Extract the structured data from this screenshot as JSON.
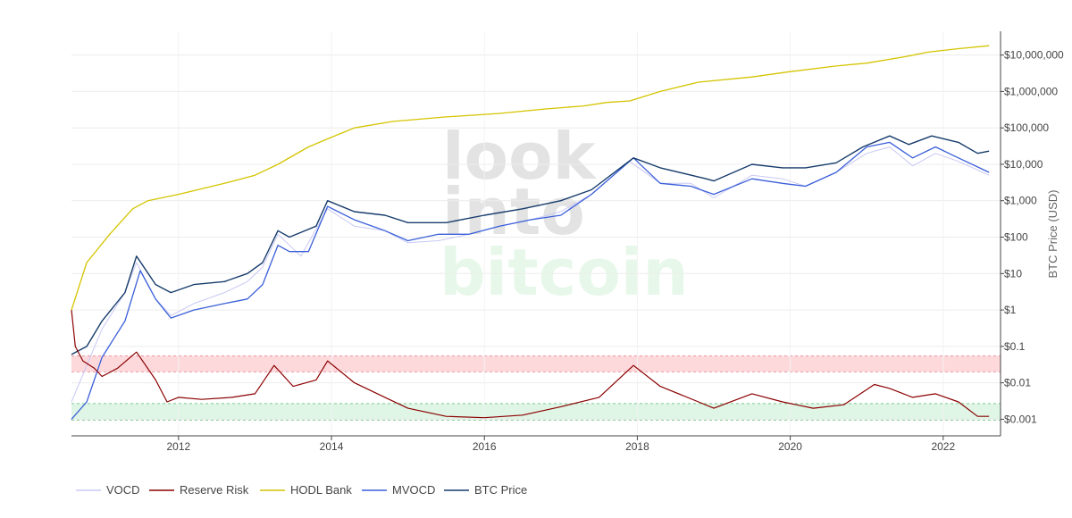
{
  "colors": {
    "vocd": "#c8c8f5",
    "reserve_risk": "#8b0000",
    "hodl_bank": "#d4c400",
    "mvocd": "#3a5fd9",
    "btc_price": "#173c6b",
    "red_band": "#fdd9dc",
    "green_band": "#dff5e6",
    "watermark_gray": "#e3e3e3",
    "watermark_green": "#e7f8ea"
  },
  "watermark": {
    "line1": "look",
    "line2": "into",
    "line3": "bitcoin"
  },
  "chart_data": {
    "type": "line",
    "title": "",
    "yscale": "log",
    "ylabel": "BTC Price (USD)",
    "xlabel": "",
    "xlim": [
      2010.6,
      2022.75
    ],
    "ylim": [
      0.00035,
      45000000
    ],
    "x_ticks": [
      2012,
      2014,
      2016,
      2018,
      2020,
      2022
    ],
    "x_tick_labels": [
      "2012",
      "2014",
      "2016",
      "2018",
      "2020",
      "2022"
    ],
    "y_ticks": [
      0.001,
      0.01,
      0.1,
      1,
      10,
      100,
      1000,
      10000,
      100000,
      1000000,
      10000000
    ],
    "y_tick_labels": [
      "$0.001",
      "$0.01",
      "$0.1",
      "$1",
      "$10",
      "$100",
      "$1,000",
      "$10,000",
      "$100,000",
      "$1,000,000",
      "$10,000,000"
    ],
    "bands": [
      {
        "name": "high-risk-band",
        "y0": 0.02,
        "y1": 0.055
      },
      {
        "name": "low-risk-band",
        "y0": 0.00095,
        "y1": 0.0027
      }
    ],
    "legend_position": "bottom-left",
    "series": [
      {
        "name": "VOCD",
        "key": "vocd",
        "x": [
          2010.6,
          2010.8,
          2011.0,
          2011.3,
          2011.45,
          2011.7,
          2011.9,
          2012.2,
          2012.6,
          2012.9,
          2013.1,
          2013.3,
          2013.6,
          2013.95,
          2014.3,
          2014.7,
          2015.0,
          2015.4,
          2015.8,
          2016.2,
          2016.6,
          2017.0,
          2017.4,
          2017.9,
          2018.3,
          2018.7,
          2019.0,
          2019.5,
          2019.9,
          2020.2,
          2020.6,
          2021.0,
          2021.3,
          2021.6,
          2021.9,
          2022.2,
          2022.6
        ],
        "y": [
          0.003,
          0.03,
          0.3,
          3,
          20,
          2,
          0.7,
          1.5,
          3,
          6,
          15,
          120,
          30,
          600,
          200,
          150,
          70,
          80,
          120,
          200,
          300,
          500,
          1500,
          12000,
          3000,
          3000,
          1200,
          5000,
          4000,
          2500,
          6000,
          20000,
          30000,
          9000,
          20000,
          12000,
          5000
        ]
      },
      {
        "name": "Reserve Risk",
        "key": "reserve_risk",
        "x": [
          2010.6,
          2010.65,
          2010.75,
          2010.9,
          2011.0,
          2011.2,
          2011.45,
          2011.7,
          2011.85,
          2012.0,
          2012.3,
          2012.7,
          2013.0,
          2013.25,
          2013.5,
          2013.8,
          2013.95,
          2014.3,
          2014.7,
          2015.0,
          2015.5,
          2016.0,
          2016.5,
          2017.0,
          2017.5,
          2017.95,
          2018.3,
          2018.8,
          2019.0,
          2019.5,
          2019.9,
          2020.3,
          2020.7,
          2021.1,
          2021.3,
          2021.6,
          2021.9,
          2022.2,
          2022.45,
          2022.6
        ],
        "y": [
          1.0,
          0.1,
          0.04,
          0.025,
          0.015,
          0.025,
          0.07,
          0.012,
          0.003,
          0.004,
          0.0035,
          0.004,
          0.005,
          0.03,
          0.008,
          0.012,
          0.04,
          0.01,
          0.004,
          0.002,
          0.0012,
          0.0011,
          0.0013,
          0.0022,
          0.004,
          0.03,
          0.008,
          0.003,
          0.002,
          0.005,
          0.003,
          0.002,
          0.0025,
          0.009,
          0.007,
          0.004,
          0.005,
          0.003,
          0.0012,
          0.0012
        ]
      },
      {
        "name": "HODL Bank",
        "key": "hodl_bank",
        "x": [
          2010.6,
          2010.8,
          2011.1,
          2011.4,
          2011.6,
          2012.0,
          2012.6,
          2013.0,
          2013.3,
          2013.7,
          2013.95,
          2014.3,
          2014.8,
          2015.5,
          2016.2,
          2016.8,
          2017.3,
          2017.6,
          2017.9,
          2018.3,
          2018.8,
          2019.5,
          2020.0,
          2020.6,
          2021.0,
          2021.5,
          2021.8,
          2022.2,
          2022.6
        ],
        "y": [
          1,
          20,
          120,
          600,
          1000,
          1500,
          3000,
          5000,
          10000,
          30000,
          50000,
          100000,
          150000,
          200000,
          250000,
          330000,
          400000,
          500000,
          550000,
          1000000,
          1800000,
          2500000,
          3500000,
          5000000,
          6000000,
          9000000,
          12000000,
          15000000,
          18000000
        ]
      },
      {
        "name": "MVOCD",
        "key": "mvocd",
        "x": [
          2010.6,
          2010.8,
          2011.0,
          2011.3,
          2011.5,
          2011.7,
          2011.9,
          2012.2,
          2012.6,
          2012.9,
          2013.1,
          2013.3,
          2013.45,
          2013.7,
          2013.95,
          2014.3,
          2014.7,
          2015.0,
          2015.4,
          2015.8,
          2016.2,
          2016.6,
          2017.0,
          2017.4,
          2017.95,
          2018.3,
          2018.7,
          2019.0,
          2019.5,
          2019.9,
          2020.2,
          2020.6,
          2021.0,
          2021.3,
          2021.6,
          2021.9,
          2022.2,
          2022.6
        ],
        "y": [
          0.001,
          0.003,
          0.05,
          0.5,
          12,
          2,
          0.6,
          1,
          1.5,
          2,
          5,
          60,
          40,
          40,
          700,
          300,
          150,
          80,
          120,
          120,
          200,
          300,
          400,
          1500,
          15000,
          3000,
          2500,
          1500,
          4000,
          3000,
          2500,
          6000,
          30000,
          40000,
          15000,
          30000,
          15000,
          6000
        ]
      },
      {
        "name": "BTC Price",
        "key": "btc_price",
        "x": [
          2010.6,
          2010.8,
          2011.0,
          2011.3,
          2011.45,
          2011.7,
          2011.9,
          2012.2,
          2012.6,
          2012.9,
          2013.1,
          2013.3,
          2013.45,
          2013.8,
          2013.95,
          2014.3,
          2014.7,
          2015.0,
          2015.5,
          2016.0,
          2016.5,
          2017.0,
          2017.4,
          2017.95,
          2018.3,
          2018.9,
          2019.0,
          2019.5,
          2019.9,
          2020.2,
          2020.6,
          2020.95,
          2021.3,
          2021.55,
          2021.85,
          2022.2,
          2022.45,
          2022.6
        ],
        "y": [
          0.06,
          0.1,
          0.5,
          3,
          30,
          5,
          3,
          5,
          6,
          10,
          20,
          150,
          100,
          200,
          1000,
          500,
          400,
          250,
          250,
          400,
          600,
          1000,
          2000,
          15000,
          8000,
          4000,
          3500,
          10000,
          8000,
          8000,
          11000,
          30000,
          60000,
          35000,
          60000,
          40000,
          20000,
          23000
        ]
      }
    ]
  }
}
